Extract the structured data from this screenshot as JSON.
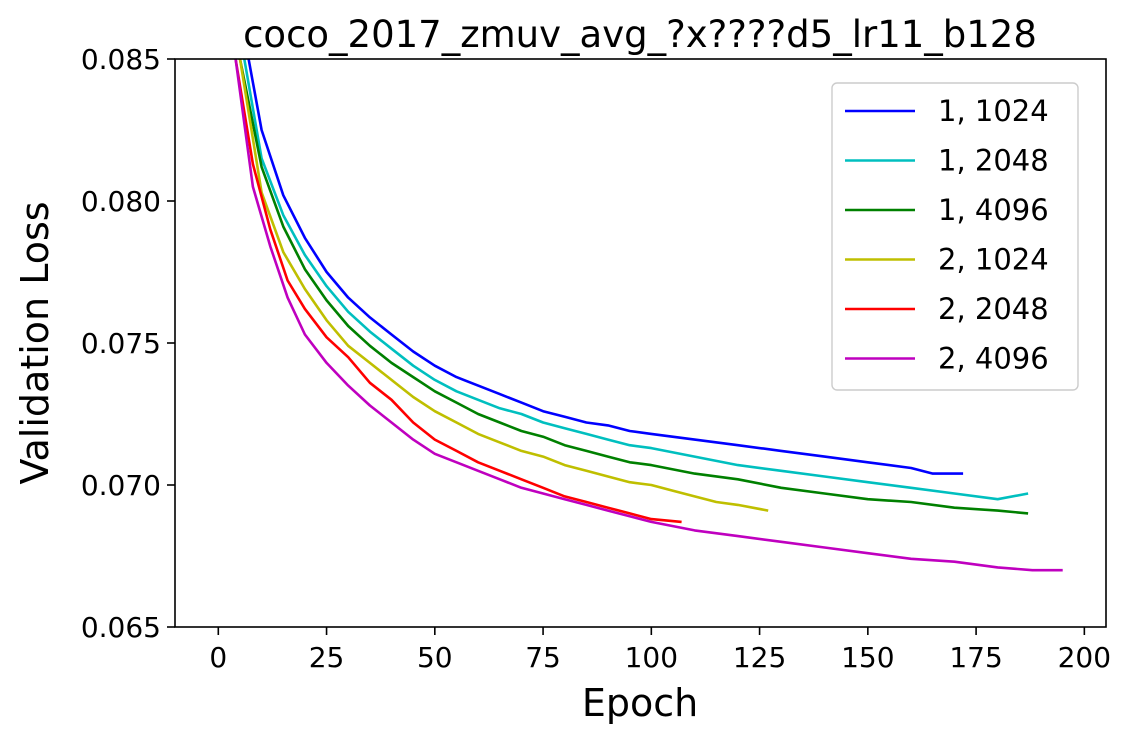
{
  "chart_data": {
    "type": "line",
    "title": "coco_2017_zmuv_avg_?x????d5_lr11_b128",
    "xlabel": "Epoch",
    "ylabel": "Validation Loss",
    "xlim": [
      -10,
      205
    ],
    "ylim": [
      0.065,
      0.085
    ],
    "xticks": [
      0,
      25,
      50,
      75,
      100,
      125,
      150,
      175,
      200
    ],
    "xtick_labels": [
      "0",
      "25",
      "50",
      "75",
      "100",
      "125",
      "150",
      "175",
      "200"
    ],
    "yticks": [
      0.065,
      0.07,
      0.075,
      0.08,
      0.085
    ],
    "ytick_labels": [
      "0.065",
      "0.070",
      "0.075",
      "0.080",
      "0.085"
    ],
    "grid": false,
    "legend_position": "top-right",
    "series": [
      {
        "name": "1, 1024",
        "color": "#0000ff",
        "x": [
          7,
          10,
          15,
          20,
          25,
          30,
          35,
          40,
          45,
          50,
          55,
          60,
          65,
          70,
          75,
          80,
          85,
          90,
          95,
          100,
          110,
          120,
          130,
          140,
          150,
          160,
          165,
          172
        ],
        "y": [
          0.085,
          0.0825,
          0.0802,
          0.0787,
          0.0775,
          0.0766,
          0.0759,
          0.0753,
          0.0747,
          0.0742,
          0.0738,
          0.0735,
          0.0732,
          0.0729,
          0.0726,
          0.0724,
          0.0722,
          0.0721,
          0.0719,
          0.0718,
          0.0716,
          0.0714,
          0.0712,
          0.071,
          0.0708,
          0.0706,
          0.0704,
          0.0704
        ]
      },
      {
        "name": "1, 2048",
        "color": "#00bfbf",
        "x": [
          6,
          10,
          15,
          20,
          25,
          30,
          35,
          40,
          45,
          50,
          55,
          60,
          65,
          70,
          75,
          80,
          85,
          90,
          95,
          100,
          110,
          120,
          130,
          140,
          150,
          160,
          170,
          180,
          187
        ],
        "y": [
          0.085,
          0.0815,
          0.0795,
          0.0781,
          0.077,
          0.0761,
          0.0754,
          0.0748,
          0.0742,
          0.0737,
          0.0733,
          0.073,
          0.0727,
          0.0725,
          0.0722,
          0.072,
          0.0718,
          0.0716,
          0.0714,
          0.0713,
          0.071,
          0.0707,
          0.0705,
          0.0703,
          0.0701,
          0.0699,
          0.0697,
          0.0695,
          0.0697
        ]
      },
      {
        "name": "1, 4096",
        "color": "#008000",
        "x": [
          5,
          10,
          15,
          20,
          25,
          30,
          35,
          40,
          45,
          50,
          55,
          60,
          65,
          70,
          75,
          80,
          85,
          90,
          95,
          100,
          110,
          120,
          130,
          140,
          150,
          160,
          170,
          180,
          187
        ],
        "y": [
          0.085,
          0.0812,
          0.0791,
          0.0776,
          0.0765,
          0.0756,
          0.0749,
          0.0743,
          0.0738,
          0.0733,
          0.0729,
          0.0725,
          0.0722,
          0.0719,
          0.0717,
          0.0714,
          0.0712,
          0.071,
          0.0708,
          0.0707,
          0.0704,
          0.0702,
          0.0699,
          0.0697,
          0.0695,
          0.0694,
          0.0692,
          0.0691,
          0.069
        ]
      },
      {
        "name": "2, 1024",
        "color": "#bfbf00",
        "x": [
          5,
          10,
          15,
          20,
          25,
          30,
          35,
          40,
          45,
          50,
          55,
          60,
          65,
          70,
          75,
          80,
          85,
          90,
          95,
          100,
          105,
          110,
          115,
          120,
          127
        ],
        "y": [
          0.085,
          0.0803,
          0.0782,
          0.0769,
          0.0758,
          0.0749,
          0.0743,
          0.0737,
          0.0731,
          0.0726,
          0.0722,
          0.0718,
          0.0715,
          0.0712,
          0.071,
          0.0707,
          0.0705,
          0.0703,
          0.0701,
          0.07,
          0.0698,
          0.0696,
          0.0694,
          0.0693,
          0.0691
        ]
      },
      {
        "name": "2, 2048",
        "color": "#ff0000",
        "x": [
          4,
          8,
          12,
          16,
          20,
          25,
          30,
          35,
          40,
          45,
          50,
          55,
          60,
          65,
          70,
          75,
          80,
          85,
          90,
          95,
          100,
          107
        ],
        "y": [
          0.085,
          0.0813,
          0.079,
          0.0772,
          0.0762,
          0.0752,
          0.0745,
          0.0736,
          0.073,
          0.0722,
          0.0716,
          0.0712,
          0.0708,
          0.0705,
          0.0702,
          0.0699,
          0.0696,
          0.0694,
          0.0692,
          0.069,
          0.0688,
          0.0687
        ]
      },
      {
        "name": "2, 4096",
        "color": "#bf00bf",
        "x": [
          4,
          8,
          12,
          16,
          20,
          25,
          30,
          35,
          40,
          45,
          50,
          55,
          60,
          65,
          70,
          75,
          80,
          85,
          90,
          95,
          100,
          110,
          120,
          130,
          140,
          150,
          160,
          170,
          180,
          188,
          195
        ],
        "y": [
          0.085,
          0.0805,
          0.0784,
          0.0766,
          0.0753,
          0.0743,
          0.0735,
          0.0728,
          0.0722,
          0.0716,
          0.0711,
          0.0708,
          0.0705,
          0.0702,
          0.0699,
          0.0697,
          0.0695,
          0.0693,
          0.0691,
          0.0689,
          0.0687,
          0.0684,
          0.0682,
          0.068,
          0.0678,
          0.0676,
          0.0674,
          0.0673,
          0.0671,
          0.067,
          0.067
        ]
      }
    ]
  }
}
